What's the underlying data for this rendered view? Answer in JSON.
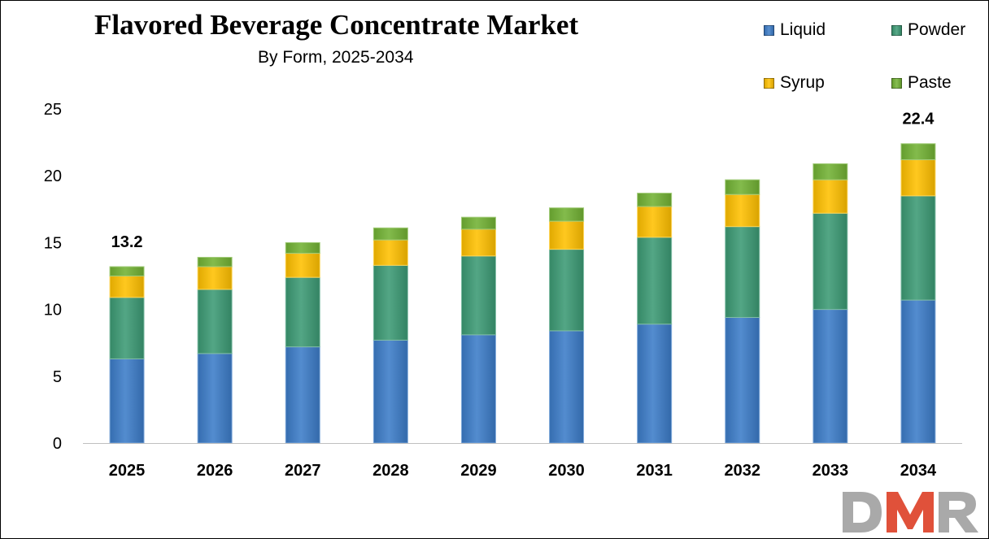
{
  "chart_data": {
    "type": "bar",
    "stacked": true,
    "title": "Flavored Beverage Concentrate Market",
    "subtitle": "By Form, 2025-2034",
    "categories": [
      "2025",
      "2026",
      "2027",
      "2028",
      "2029",
      "2030",
      "2031",
      "2032",
      "2033",
      "2034"
    ],
    "series": [
      {
        "name": "Liquid",
        "color": "#3C7CC8",
        "values": [
          6.3,
          6.7,
          7.2,
          7.7,
          8.1,
          8.4,
          8.9,
          9.4,
          10.0,
          10.7
        ]
      },
      {
        "name": "Powder",
        "color": "#3C9A74",
        "values": [
          4.6,
          4.8,
          5.2,
          5.6,
          5.9,
          6.1,
          6.5,
          6.8,
          7.2,
          7.8
        ]
      },
      {
        "name": "Syrup",
        "color": "#FFC000",
        "values": [
          1.6,
          1.7,
          1.8,
          1.9,
          2.0,
          2.1,
          2.3,
          2.4,
          2.5,
          2.7
        ]
      },
      {
        "name": "Paste",
        "color": "#72B234",
        "values": [
          0.7,
          0.7,
          0.8,
          0.9,
          0.9,
          1.0,
          1.0,
          1.1,
          1.2,
          1.2
        ]
      }
    ],
    "total_labels": [
      {
        "category": "2025",
        "text": "13.2",
        "value": 13.2
      },
      {
        "category": "2034",
        "text": "22.4",
        "value": 22.4
      }
    ],
    "ylim": [
      0,
      25
    ],
    "yticks": [
      "0",
      "5",
      "10",
      "15",
      "20",
      "25"
    ],
    "xlabel": "",
    "ylabel": "",
    "grid": false,
    "legend_position": "top-right"
  },
  "logo": {
    "text": "DMR",
    "colors": {
      "d": "#A9A9A9",
      "m": "#E0513A",
      "r": "#A9A9A9"
    }
  }
}
